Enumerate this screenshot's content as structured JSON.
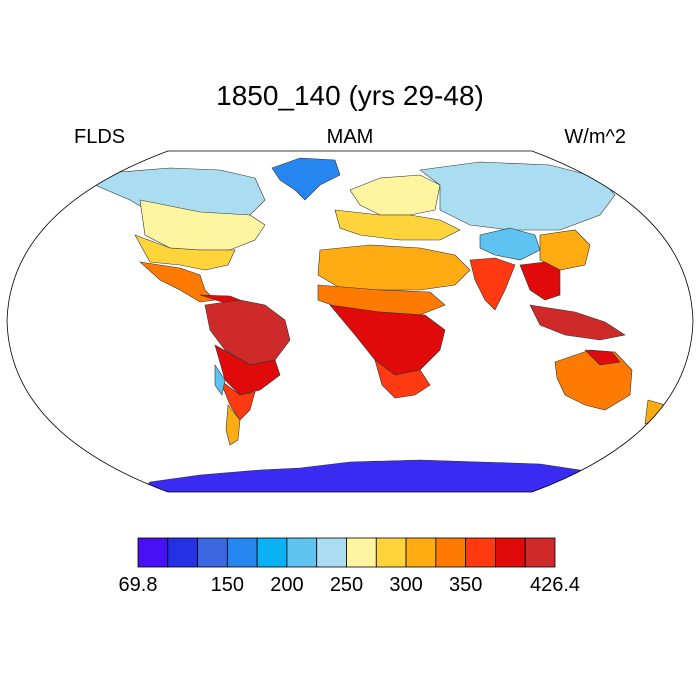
{
  "title": "1850_140 (yrs 29-48)",
  "left_label": "FLDS",
  "center_label": "MAM",
  "right_label": "W/m^2",
  "colorbar": {
    "colors": [
      "#4a10f5",
      "#2531e5",
      "#3b67e0",
      "#2586f0",
      "#0ab2f5",
      "#5ec3f0",
      "#aadcf2",
      "#fff5a0",
      "#ffd43a",
      "#ffab12",
      "#ff7a00",
      "#ff3a10",
      "#e00a0a",
      "#cf2a2a"
    ],
    "tick_labels": [
      "69.8",
      "150",
      "200",
      "250",
      "300",
      "350",
      "426.4"
    ],
    "tick_boundaries": [
      0,
      3,
      5,
      7,
      9,
      11,
      14
    ]
  },
  "map": {
    "projection": "Robinson",
    "colors": {
      "ocean": "#ffffff",
      "antarctica": "#3a2bf2",
      "greenland": "#2586f0",
      "arctic_land": "#aadcf2",
      "mid_lat": "#fff5a0",
      "warm": "#ffd43a",
      "warmer": "#ffab12",
      "hot": "#ff7a00",
      "hotter": "#ff3a10",
      "tropical": "#e00a0a",
      "deep_tropical": "#cf2a2a",
      "tibet": "#5ec3f0"
    }
  }
}
